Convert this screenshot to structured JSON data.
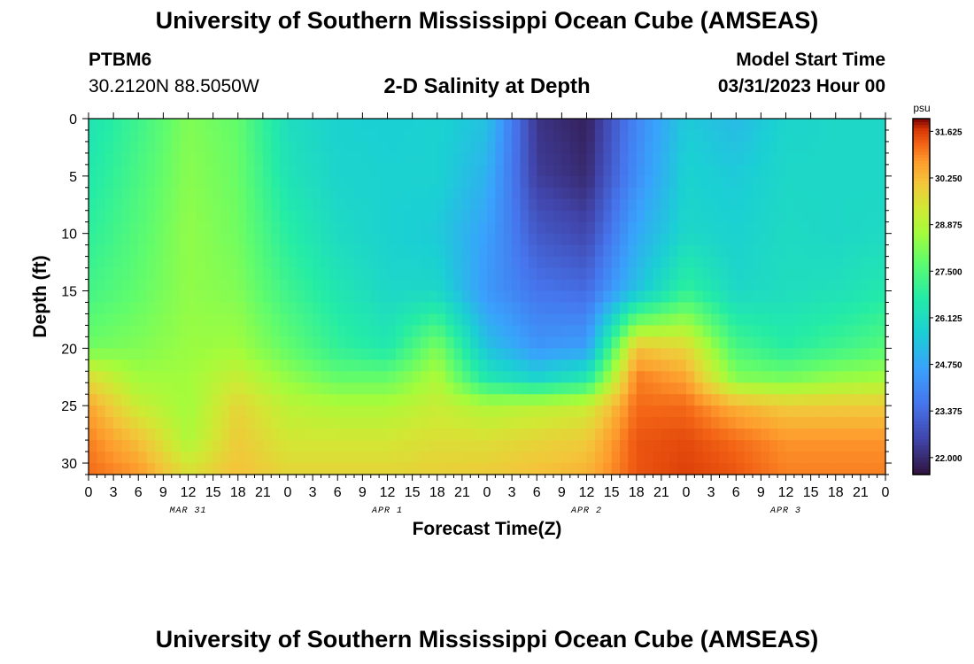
{
  "page": {
    "title": "University of Southern Mississippi Ocean Cube (AMSEAS)",
    "footer_title": "University of Southern Mississippi Ocean Cube (AMSEAS)",
    "station": "PTBM6",
    "coordinates": "30.2120N  88.5050W",
    "model_start_label": "Model Start Time",
    "model_start_value": "03/31/2023 Hour 00"
  },
  "chart_data": {
    "type": "heatmap",
    "title": "2-D Salinity at Depth",
    "xlabel": "Forecast Time(Z)",
    "ylabel": "Depth (ft)",
    "x_range_hours": [
      0,
      96
    ],
    "ylim": [
      0,
      31
    ],
    "y_inverted": true,
    "y_ticks": [
      0,
      5,
      10,
      15,
      20,
      25,
      30
    ],
    "x_tick_labels": [
      "0",
      "3",
      "6",
      "9",
      "12",
      "15",
      "18",
      "21",
      "0",
      "3",
      "6",
      "9",
      "12",
      "15",
      "18",
      "21",
      "0",
      "3",
      "6",
      "9",
      "12",
      "15",
      "18",
      "21",
      "0",
      "3",
      "6",
      "9",
      "12",
      "15",
      "18",
      "21",
      "0"
    ],
    "date_labels": [
      {
        "label": "MAR 31",
        "hour": 12
      },
      {
        "label": "APR 1",
        "hour": 36
      },
      {
        "label": "APR 2",
        "hour": 60
      },
      {
        "label": "APR 3",
        "hour": 84
      }
    ],
    "grid": false,
    "colorbar": {
      "unit": "psu",
      "min": 21.5,
      "max": 32.0,
      "tick_values": [
        22.0,
        23.375,
        24.75,
        26.125,
        27.5,
        28.875,
        30.25,
        31.625
      ],
      "tick_labels": [
        "22.000",
        "23.375",
        "24.750",
        "26.125",
        "27.500",
        "28.875",
        "30.250",
        "31.625"
      ]
    },
    "salinity_profiles_psu": {
      "description_hours": [
        0,
        6,
        12,
        18,
        24,
        30,
        36,
        42,
        48,
        54,
        60,
        66,
        72,
        78,
        84,
        90,
        96
      ],
      "depths_ft": [
        0,
        5,
        10,
        15,
        20,
        22.5,
        25,
        28,
        31
      ],
      "values": [
        [
          26.4,
          26.6,
          26.9,
          27.3,
          28.0,
          29.6,
          30.6,
          31.0,
          31.2
        ],
        [
          27.2,
          27.4,
          27.6,
          27.8,
          28.2,
          28.6,
          29.2,
          30.2,
          30.8
        ],
        [
          28.2,
          28.3,
          28.4,
          28.4,
          28.5,
          28.6,
          28.6,
          28.8,
          29.6
        ],
        [
          27.8,
          27.9,
          28.0,
          28.2,
          28.6,
          29.2,
          29.8,
          30.0,
          30.2
        ],
        [
          26.2,
          26.4,
          26.8,
          27.2,
          27.8,
          28.4,
          29.0,
          29.4,
          29.8
        ],
        [
          25.8,
          25.9,
          26.1,
          26.5,
          27.0,
          27.8,
          28.8,
          29.4,
          29.8
        ],
        [
          25.7,
          25.8,
          25.8,
          26.0,
          26.6,
          27.8,
          28.8,
          29.4,
          29.8
        ],
        [
          25.8,
          25.8,
          25.6,
          26.0,
          28.2,
          28.8,
          29.2,
          29.6,
          29.9
        ],
        [
          25.4,
          25.0,
          24.6,
          24.4,
          25.4,
          26.5,
          28.8,
          29.6,
          30.0
        ],
        [
          22.2,
          22.4,
          23.0,
          23.6,
          24.4,
          25.8,
          29.0,
          29.8,
          30.2
        ],
        [
          21.8,
          22.0,
          22.6,
          23.4,
          24.6,
          26.5,
          29.2,
          30.0,
          30.4
        ],
        [
          24.0,
          24.2,
          24.8,
          25.4,
          30.2,
          31.0,
          31.2,
          31.4,
          31.4
        ],
        [
          25.6,
          25.8,
          26.0,
          27.0,
          29.8,
          30.6,
          31.2,
          31.5,
          31.6
        ],
        [
          25.2,
          25.6,
          25.8,
          26.0,
          27.4,
          28.2,
          30.4,
          31.2,
          31.4
        ],
        [
          25.9,
          26.0,
          26.1,
          26.2,
          26.8,
          28.0,
          30.0,
          30.8,
          31.0
        ],
        [
          26.0,
          26.0,
          26.0,
          26.3,
          27.2,
          28.4,
          30.0,
          30.8,
          31.0
        ],
        [
          26.0,
          26.0,
          26.1,
          26.6,
          27.6,
          28.6,
          30.0,
          30.8,
          31.0
        ]
      ]
    }
  }
}
